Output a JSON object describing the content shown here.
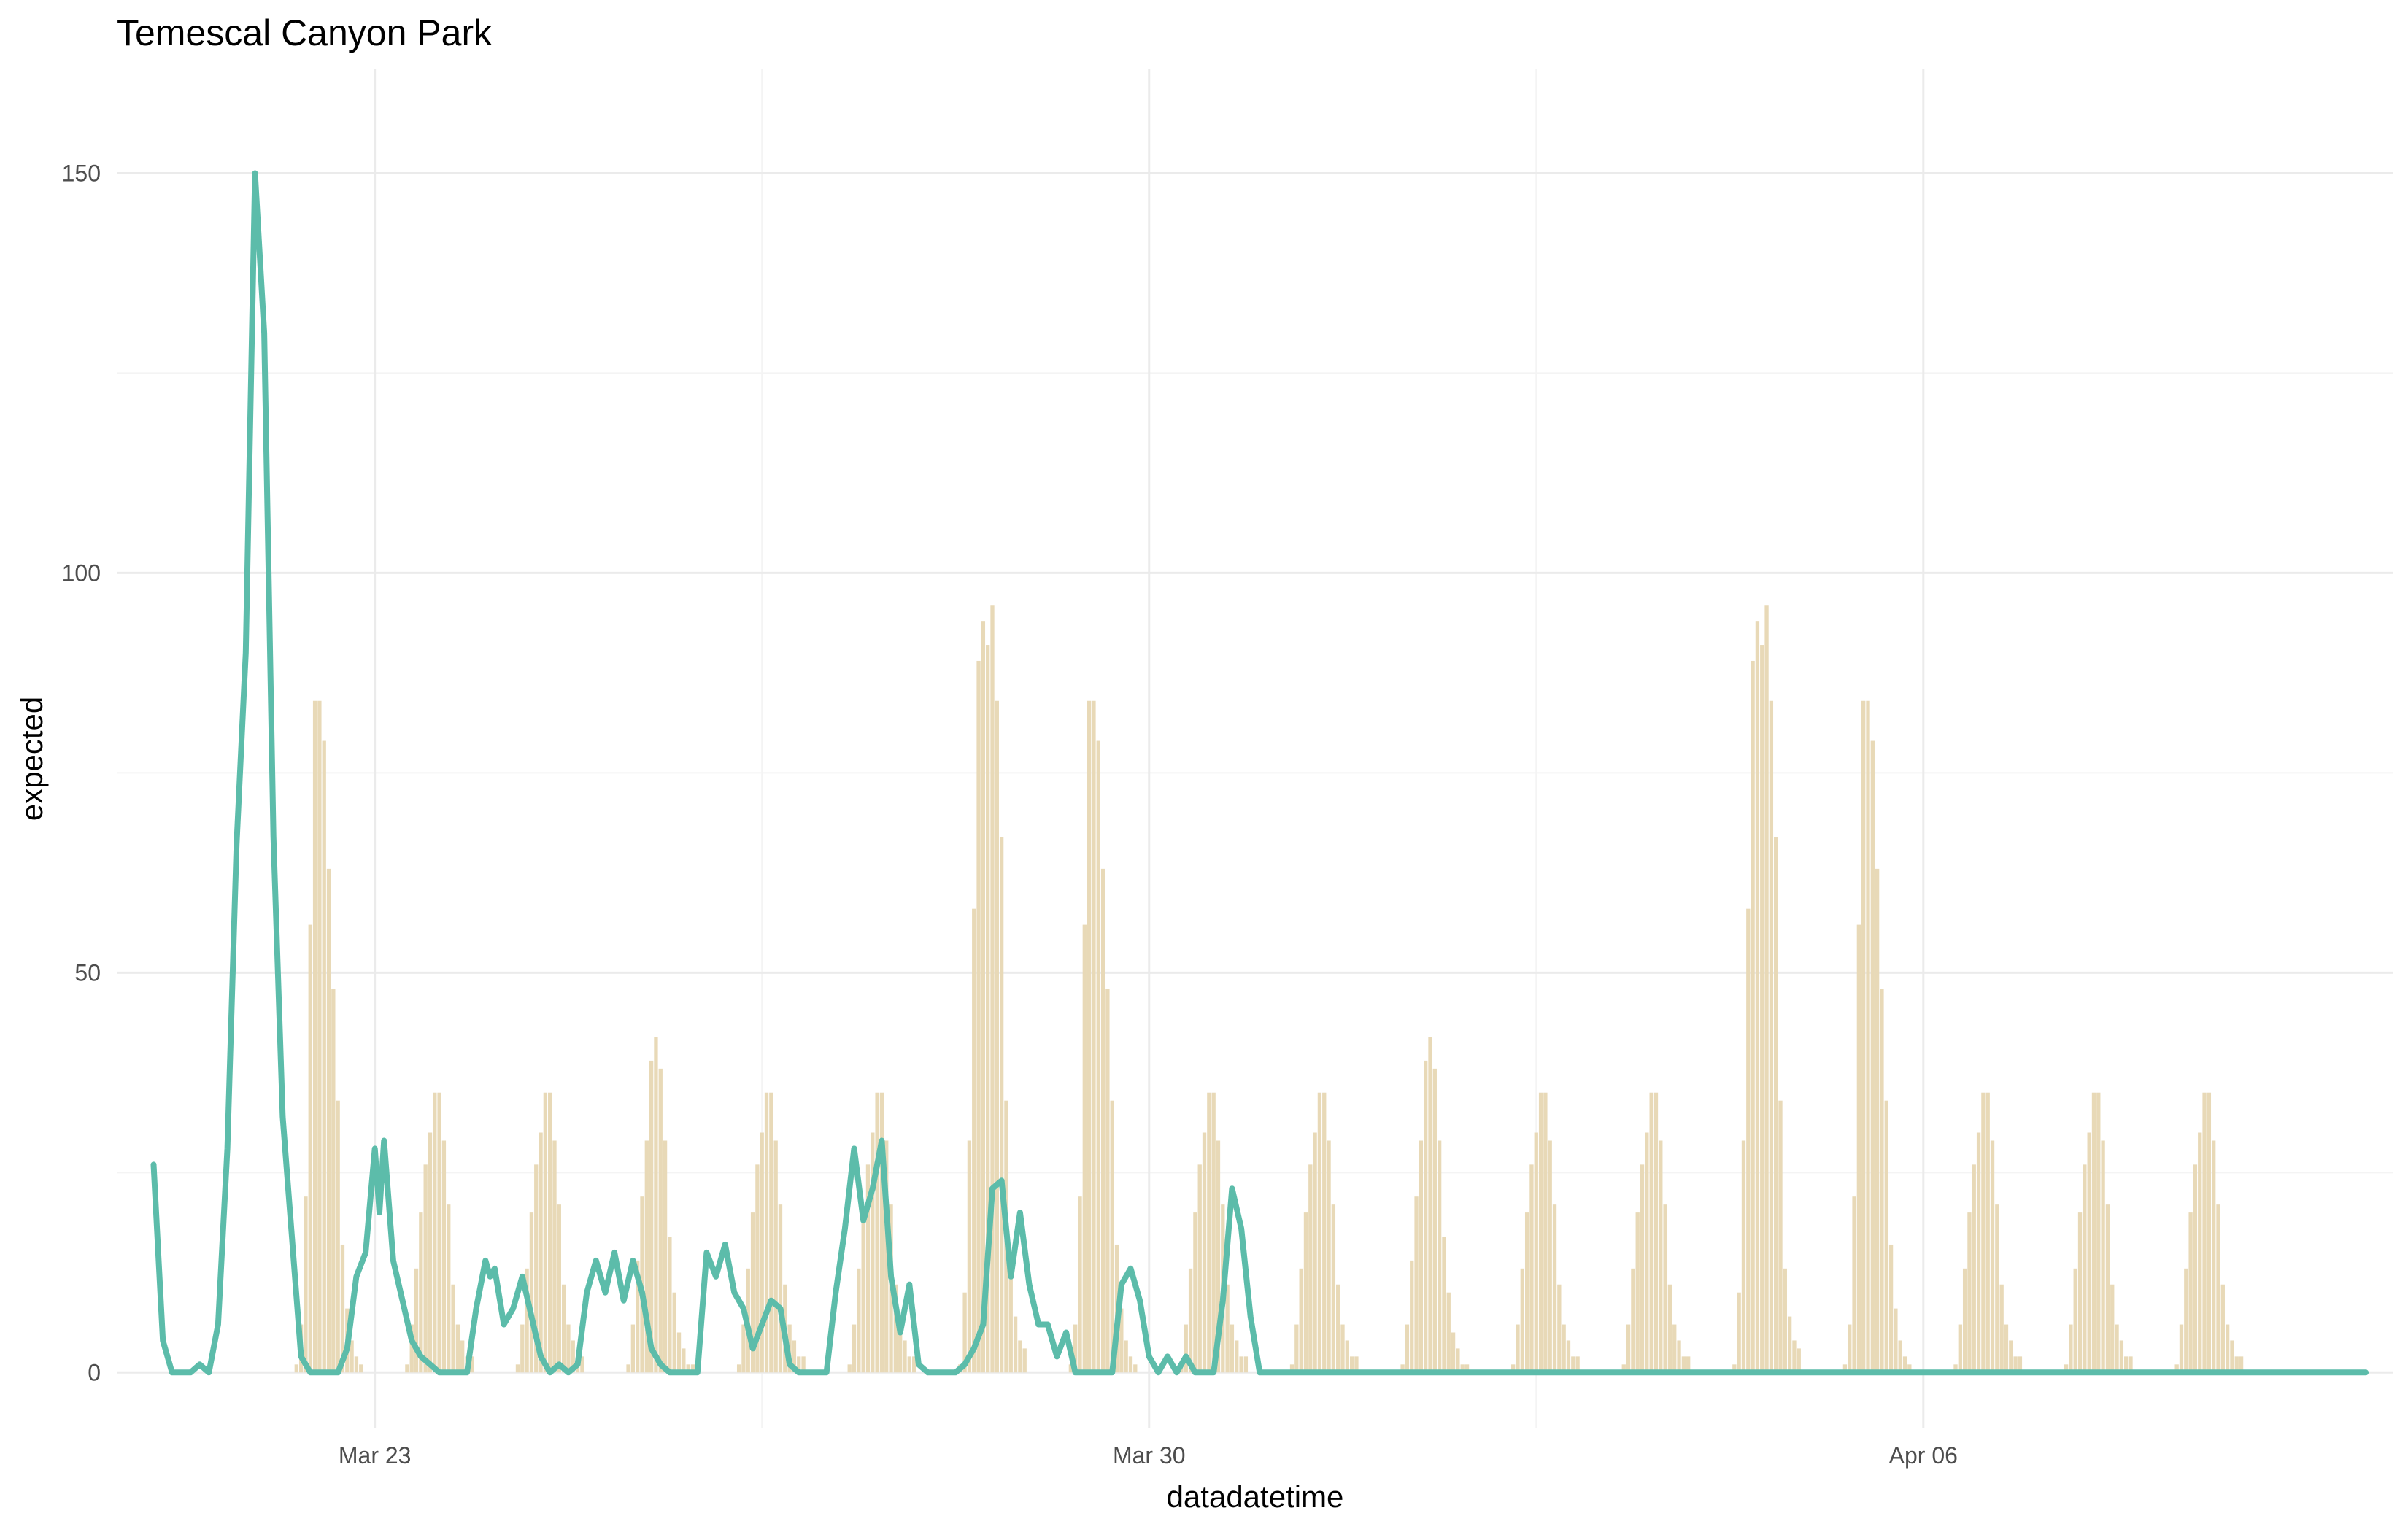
{
  "chart_data": {
    "type": "bar",
    "title": "Temescal Canyon Park",
    "xlabel": "datadatetime",
    "ylabel": "expected",
    "x_type": "datetime",
    "xlim": [
      "2025-03-20T16:00",
      "2025-04-10T06:00"
    ],
    "ylim": [
      -7,
      163
    ],
    "x_ticks": [
      {
        "label": "Mar 23",
        "value": "2025-03-23T00:00"
      },
      {
        "label": "Mar 30",
        "value": "2025-03-30T00:00"
      },
      {
        "label": "Apr 06",
        "value": "2025-04-06T00:00"
      }
    ],
    "x_minor_ticks": [
      "2025-03-26T12:00",
      "2025-04-02T12:00"
    ],
    "y_ticks": [
      0,
      50,
      100,
      150
    ],
    "y_minor_ticks": [
      25,
      75,
      125
    ],
    "grid": true,
    "legend": "none",
    "colors": {
      "bars": "#e8d9b7",
      "line": "#5cbcaa"
    },
    "series": [
      {
        "kind": "bar",
        "color": "#e8d9b7",
        "start": "2025-03-22T00:00",
        "interval_hours": 1,
        "daily_profiles": {
          "weekday": [
            0,
            0,
            0,
            0,
            0,
            0,
            0,
            1,
            6,
            13,
            20,
            26,
            30,
            35,
            35,
            29,
            21,
            11,
            6,
            4,
            2,
            2,
            0,
            0
          ],
          "friday": [
            0,
            0,
            0,
            0,
            0,
            0,
            0,
            1,
            6,
            14,
            22,
            29,
            39,
            42,
            38,
            29,
            17,
            10,
            5,
            3,
            1,
            1,
            0,
            0
          ],
          "saturday": [
            0,
            0,
            0,
            0,
            0,
            0,
            0,
            1,
            10,
            29,
            58,
            89,
            94,
            91,
            96,
            84,
            67,
            34,
            13,
            7,
            4,
            3,
            0,
            0
          ],
          "sunday": [
            0,
            0,
            0,
            0,
            0,
            0,
            0,
            1,
            6,
            22,
            56,
            84,
            84,
            79,
            63,
            48,
            34,
            16,
            8,
            4,
            2,
            1,
            0,
            0
          ]
        },
        "days": [
          "sunday",
          "weekday",
          "weekday",
          "friday",
          "weekday",
          "weekday",
          "saturday",
          "sunday",
          "weekday",
          "weekday",
          "friday",
          "weekday",
          "weekday",
          "saturday",
          "sunday",
          "weekday",
          "weekday",
          "weekday"
        ],
        "day_dates": [
          "2025-03-22",
          "2025-03-23",
          "2025-03-24",
          "2025-03-25",
          "2025-03-26",
          "2025-03-27",
          "2025-03-28",
          "2025-03-29",
          "2025-03-30",
          "2025-03-31",
          "2025-04-01",
          "2025-04-02",
          "2025-04-03",
          "2025-04-04",
          "2025-04-05",
          "2025-04-06",
          "2025-04-07",
          "2025-04-08"
        ]
      },
      {
        "kind": "line",
        "color": "#5cbcaa",
        "points": [
          [
            "2025-03-21T00:00",
            26
          ],
          [
            "2025-03-21T02:00",
            4
          ],
          [
            "2025-03-21T04:00",
            0
          ],
          [
            "2025-03-21T08:00",
            0
          ],
          [
            "2025-03-21T10:00",
            1
          ],
          [
            "2025-03-21T12:00",
            0
          ],
          [
            "2025-03-21T14:00",
            6
          ],
          [
            "2025-03-21T16:00",
            28
          ],
          [
            "2025-03-21T18:00",
            66
          ],
          [
            "2025-03-21T20:00",
            90
          ],
          [
            "2025-03-21T22:00",
            150
          ],
          [
            "2025-03-22T00:00",
            130
          ],
          [
            "2025-03-22T02:00",
            67
          ],
          [
            "2025-03-22T04:00",
            32
          ],
          [
            "2025-03-22T06:00",
            17
          ],
          [
            "2025-03-22T08:00",
            2
          ],
          [
            "2025-03-22T10:00",
            0
          ],
          [
            "2025-03-22T16:00",
            0
          ],
          [
            "2025-03-22T18:00",
            3
          ],
          [
            "2025-03-22T20:00",
            12
          ],
          [
            "2025-03-22T22:00",
            15
          ],
          [
            "2025-03-23T00:00",
            28
          ],
          [
            "2025-03-23T01:00",
            20
          ],
          [
            "2025-03-23T02:00",
            29
          ],
          [
            "2025-03-23T04:00",
            14
          ],
          [
            "2025-03-23T06:00",
            9
          ],
          [
            "2025-03-23T08:00",
            4
          ],
          [
            "2025-03-23T10:00",
            2
          ],
          [
            "2025-03-23T12:00",
            1
          ],
          [
            "2025-03-23T14:00",
            0
          ],
          [
            "2025-03-23T20:00",
            0
          ],
          [
            "2025-03-23T22:00",
            8
          ],
          [
            "2025-03-24T00:00",
            14
          ],
          [
            "2025-03-24T01:00",
            12
          ],
          [
            "2025-03-24T02:00",
            13
          ],
          [
            "2025-03-24T04:00",
            6
          ],
          [
            "2025-03-24T06:00",
            8
          ],
          [
            "2025-03-24T08:00",
            12
          ],
          [
            "2025-03-24T10:00",
            7
          ],
          [
            "2025-03-24T12:00",
            2
          ],
          [
            "2025-03-24T14:00",
            0
          ],
          [
            "2025-03-24T16:00",
            1
          ],
          [
            "2025-03-24T18:00",
            0
          ],
          [
            "2025-03-24T20:00",
            1
          ],
          [
            "2025-03-24T22:00",
            10
          ],
          [
            "2025-03-25T00:00",
            14
          ],
          [
            "2025-03-25T02:00",
            10
          ],
          [
            "2025-03-25T04:00",
            15
          ],
          [
            "2025-03-25T06:00",
            9
          ],
          [
            "2025-03-25T08:00",
            14
          ],
          [
            "2025-03-25T10:00",
            10
          ],
          [
            "2025-03-25T12:00",
            3
          ],
          [
            "2025-03-25T14:00",
            1
          ],
          [
            "2025-03-25T16:00",
            0
          ],
          [
            "2025-03-25T22:00",
            0
          ],
          [
            "2025-03-26T00:00",
            15
          ],
          [
            "2025-03-26T02:00",
            12
          ],
          [
            "2025-03-26T04:00",
            16
          ],
          [
            "2025-03-26T06:00",
            10
          ],
          [
            "2025-03-26T08:00",
            8
          ],
          [
            "2025-03-26T10:00",
            3
          ],
          [
            "2025-03-26T12:00",
            6
          ],
          [
            "2025-03-26T14:00",
            9
          ],
          [
            "2025-03-26T16:00",
            8
          ],
          [
            "2025-03-26T18:00",
            1
          ],
          [
            "2025-03-26T20:00",
            0
          ],
          [
            "2025-03-27T02:00",
            0
          ],
          [
            "2025-03-27T04:00",
            10
          ],
          [
            "2025-03-27T06:00",
            18
          ],
          [
            "2025-03-27T08:00",
            28
          ],
          [
            "2025-03-27T10:00",
            19
          ],
          [
            "2025-03-27T12:00",
            23
          ],
          [
            "2025-03-27T14:00",
            29
          ],
          [
            "2025-03-27T16:00",
            12
          ],
          [
            "2025-03-27T18:00",
            5
          ],
          [
            "2025-03-27T20:00",
            11
          ],
          [
            "2025-03-27T22:00",
            1
          ],
          [
            "2025-03-28T00:00",
            0
          ],
          [
            "2025-03-28T06:00",
            0
          ],
          [
            "2025-03-28T08:00",
            1
          ],
          [
            "2025-03-28T10:00",
            3
          ],
          [
            "2025-03-28T12:00",
            6
          ],
          [
            "2025-03-28T14:00",
            23
          ],
          [
            "2025-03-28T16:00",
            24
          ],
          [
            "2025-03-28T18:00",
            12
          ],
          [
            "2025-03-28T20:00",
            20
          ],
          [
            "2025-03-28T22:00",
            11
          ],
          [
            "2025-03-29T00:00",
            6
          ],
          [
            "2025-03-29T02:00",
            6
          ],
          [
            "2025-03-29T04:00",
            2
          ],
          [
            "2025-03-29T06:00",
            5
          ],
          [
            "2025-03-29T08:00",
            0
          ],
          [
            "2025-03-29T16:00",
            0
          ],
          [
            "2025-03-29T18:00",
            11
          ],
          [
            "2025-03-29T20:00",
            13
          ],
          [
            "2025-03-29T22:00",
            9
          ],
          [
            "2025-03-30T00:00",
            2
          ],
          [
            "2025-03-30T02:00",
            0
          ],
          [
            "2025-03-30T04:00",
            2
          ],
          [
            "2025-03-30T06:00",
            0
          ],
          [
            "2025-03-30T08:00",
            2
          ],
          [
            "2025-03-30T10:00",
            0
          ],
          [
            "2025-03-30T14:00",
            0
          ],
          [
            "2025-03-30T16:00",
            9
          ],
          [
            "2025-03-30T18:00",
            23
          ],
          [
            "2025-03-30T20:00",
            18
          ],
          [
            "2025-03-30T22:00",
            7
          ],
          [
            "2025-03-31T00:00",
            0
          ],
          [
            "2025-04-10T00:00",
            0
          ]
        ]
      }
    ]
  }
}
